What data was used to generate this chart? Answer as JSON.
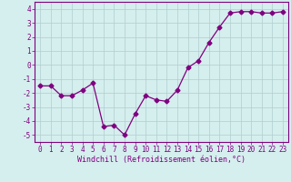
{
  "x": [
    0,
    1,
    2,
    3,
    4,
    5,
    6,
    7,
    8,
    9,
    10,
    11,
    12,
    13,
    14,
    15,
    16,
    17,
    18,
    19,
    20,
    21,
    22,
    23
  ],
  "y": [
    -1.5,
    -1.5,
    -2.2,
    -2.2,
    -1.8,
    -1.3,
    -4.4,
    -4.3,
    -5.0,
    -3.5,
    -2.2,
    -2.5,
    -2.6,
    -1.8,
    -0.2,
    0.3,
    1.6,
    2.7,
    3.7,
    3.8,
    3.8,
    3.7,
    3.7,
    3.8
  ],
  "line_color": "#800080",
  "marker": "D",
  "marker_size": 2.5,
  "background_color": "#d5eeee",
  "grid_color": "#b0cece",
  "xlabel": "Windchill (Refroidissement éolien,°C)",
  "xlim": [
    -0.5,
    23.5
  ],
  "ylim": [
    -5.5,
    4.5
  ],
  "yticks": [
    -5,
    -4,
    -3,
    -2,
    -1,
    0,
    1,
    2,
    3,
    4
  ],
  "xticks": [
    0,
    1,
    2,
    3,
    4,
    5,
    6,
    7,
    8,
    9,
    10,
    11,
    12,
    13,
    14,
    15,
    16,
    17,
    18,
    19,
    20,
    21,
    22,
    23
  ],
  "xtick_labels": [
    "0",
    "1",
    "2",
    "3",
    "4",
    "5",
    "6",
    "7",
    "8",
    "9",
    "10",
    "11",
    "12",
    "13",
    "14",
    "15",
    "16",
    "17",
    "18",
    "19",
    "20",
    "21",
    "22",
    "23"
  ],
  "tick_color": "#800080",
  "label_color": "#800080",
  "spine_color": "#800080",
  "tick_fontsize": 5.5,
  "xlabel_fontsize": 6.0
}
